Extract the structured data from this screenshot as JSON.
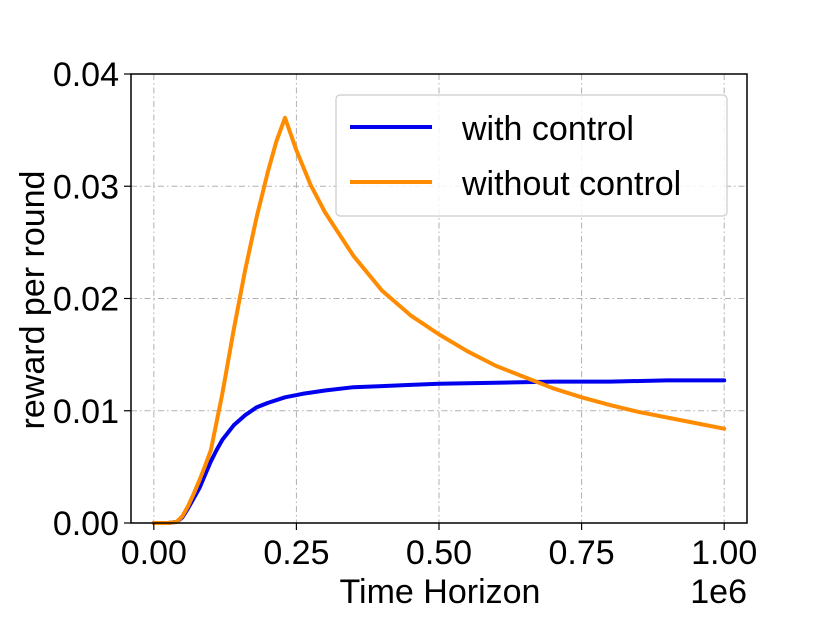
{
  "chart_data": {
    "type": "line",
    "title": "",
    "xlabel": "Time Horizon",
    "ylabel": "reward per round",
    "x_offset_label": "1e6",
    "x_scale": 1000000,
    "xlim": [
      -40000,
      1040000
    ],
    "ylim": [
      0,
      0.04
    ],
    "xticks": [
      0,
      250000,
      500000,
      750000,
      1000000
    ],
    "xtick_labels": [
      "0.00",
      "0.25",
      "0.50",
      "0.75",
      "1.00"
    ],
    "yticks": [
      0,
      0.01,
      0.02,
      0.03,
      0.04
    ],
    "ytick_labels": [
      "0.00",
      "0.01",
      "0.02",
      "0.03",
      "0.04"
    ],
    "grid": true,
    "legend_position": "top-right",
    "series": [
      {
        "name": "with control",
        "color": "#0000ee",
        "x": [
          0,
          25000,
          40000,
          50000,
          60000,
          70000,
          80000,
          90000,
          100000,
          110000,
          120000,
          140000,
          160000,
          180000,
          200000,
          230000,
          260000,
          300000,
          350000,
          400000,
          450000,
          500000,
          600000,
          700000,
          800000,
          900000,
          1000000
        ],
        "y": [
          0,
          0,
          0.0001,
          0.0005,
          0.0013,
          0.0022,
          0.0031,
          0.0043,
          0.0055,
          0.0065,
          0.0074,
          0.0087,
          0.0096,
          0.0103,
          0.0107,
          0.0112,
          0.0115,
          0.0118,
          0.0121,
          0.0122,
          0.0123,
          0.0124,
          0.0125,
          0.0126,
          0.0126,
          0.0127,
          0.0127
        ]
      },
      {
        "name": "without control",
        "color": "#ff8c00",
        "x": [
          0,
          25000,
          40000,
          50000,
          60000,
          70000,
          80000,
          90000,
          100000,
          120000,
          140000,
          160000,
          180000,
          200000,
          215000,
          230000,
          250000,
          275000,
          300000,
          350000,
          400000,
          450000,
          500000,
          550000,
          600000,
          650000,
          700000,
          750000,
          800000,
          850000,
          900000,
          950000,
          1000000
        ],
        "y": [
          0,
          0,
          0.0001,
          0.0006,
          0.0015,
          0.0026,
          0.0038,
          0.0051,
          0.0065,
          0.0115,
          0.0172,
          0.0225,
          0.0272,
          0.0313,
          0.034,
          0.0361,
          0.0332,
          0.0301,
          0.0277,
          0.0238,
          0.0207,
          0.0185,
          0.0168,
          0.0153,
          0.014,
          0.013,
          0.012,
          0.0112,
          0.0105,
          0.0099,
          0.0094,
          0.0089,
          0.0084
        ]
      }
    ]
  }
}
